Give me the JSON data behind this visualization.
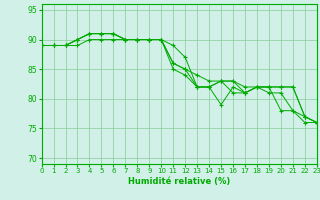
{
  "xlabel": "Humidité relative (%)",
  "xlim": [
    0,
    23
  ],
  "ylim": [
    69,
    96
  ],
  "yticks": [
    70,
    75,
    80,
    85,
    90,
    95
  ],
  "xtick_labels": [
    "0",
    "1",
    "2",
    "3",
    "4",
    "5",
    "6",
    "7",
    "8",
    "9",
    "10",
    "11",
    "12",
    "13",
    "14",
    "15",
    "16",
    "17",
    "18",
    "19",
    "20",
    "21",
    "22",
    "23"
  ],
  "background_color": "#d0f0e8",
  "grid_color": "#88cc99",
  "line_color": "#00aa00",
  "series": [
    [
      89,
      89,
      89,
      89,
      90,
      90,
      90,
      90,
      90,
      90,
      90,
      89,
      87,
      82,
      82,
      83,
      83,
      81,
      82,
      81,
      81,
      78,
      76,
      76
    ],
    [
      89,
      89,
      89,
      90,
      91,
      91,
      91,
      90,
      90,
      90,
      90,
      86,
      85,
      84,
      83,
      83,
      83,
      82,
      82,
      82,
      82,
      82,
      77,
      76
    ],
    [
      89,
      89,
      89,
      90,
      91,
      91,
      91,
      90,
      90,
      90,
      90,
      86,
      85,
      82,
      82,
      79,
      82,
      81,
      82,
      82,
      82,
      82,
      77,
      76
    ],
    [
      89,
      89,
      89,
      90,
      91,
      91,
      91,
      90,
      90,
      90,
      90,
      85,
      84,
      82,
      82,
      83,
      81,
      81,
      82,
      82,
      78,
      78,
      77,
      76
    ]
  ]
}
